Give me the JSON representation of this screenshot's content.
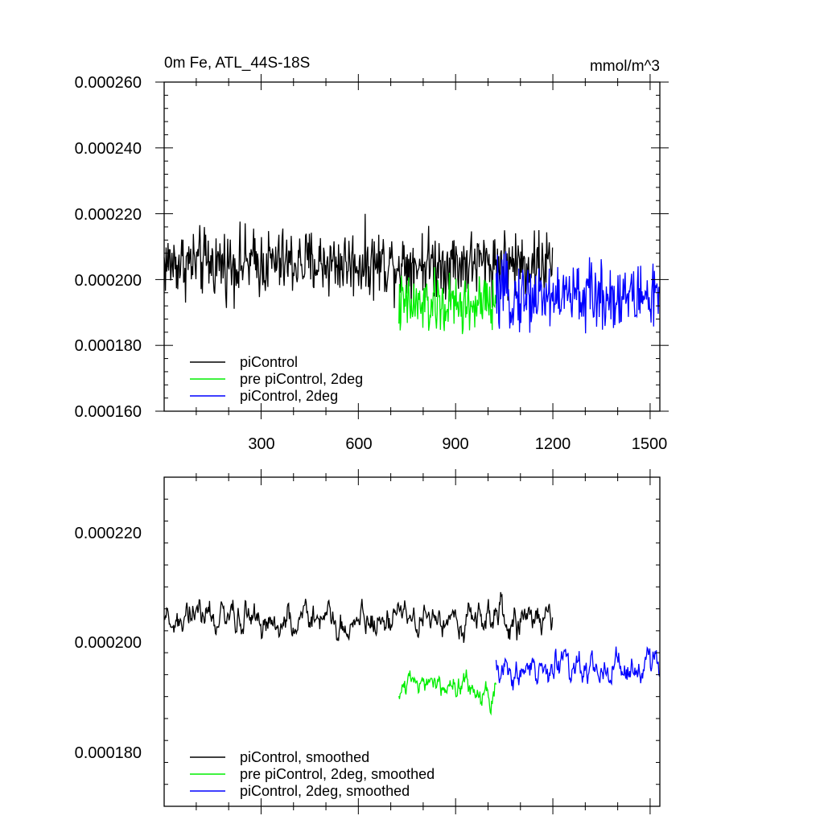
{
  "chart_data": [
    {
      "type": "line",
      "title": "0m Fe, ATL_44S-18S",
      "units": "mmol/m^3",
      "xlim": [
        1,
        1530
      ],
      "ylim": [
        0.00016,
        0.00026
      ],
      "x_ticks": [
        300,
        600,
        900,
        1200,
        1500
      ],
      "y_ticks": [
        "0.000160",
        "0.000180",
        "0.000200",
        "0.000220",
        "0.000240",
        "0.000260"
      ],
      "legend_position": "bottom-left",
      "series": [
        {
          "name": "piControl",
          "color": "#000000",
          "x_range": [
            1,
            1200
          ],
          "mean": 0.000205,
          "amplitude": 1.1e-05
        },
        {
          "name": "pre piControl, 2deg",
          "color": "#00ee00",
          "x_range": [
            725,
            1025
          ],
          "mean": 0.000192,
          "amplitude": 1e-05
        },
        {
          "name": "piControl, 2deg",
          "color": "#0000ff",
          "x_range": [
            1025,
            1530
          ],
          "mean": 0.000195,
          "amplitude": 1.1e-05
        }
      ]
    },
    {
      "type": "line",
      "xlim": [
        1,
        1530
      ],
      "ylim": [
        0.00017,
        0.00023
      ],
      "x_ticks": [
        300,
        600,
        900,
        1200,
        1500
      ],
      "y_ticks": [
        "0.000180",
        "0.000200",
        "0.000220"
      ],
      "legend_position": "bottom-left",
      "series": [
        {
          "name": "piControl, smoothed",
          "color": "#000000",
          "x_range": [
            1,
            1200
          ],
          "mean": 0.000204,
          "amplitude": 6e-06
        },
        {
          "name": "pre piControl, 2deg, smoothed",
          "color": "#00ee00",
          "x_range": [
            725,
            1025
          ],
          "mean": 0.000191,
          "amplitude": 5e-06
        },
        {
          "name": "piControl, 2deg, smoothed",
          "color": "#0000ff",
          "x_range": [
            1025,
            1530
          ],
          "mean": 0.000195,
          "amplitude": 6e-06
        }
      ]
    }
  ]
}
